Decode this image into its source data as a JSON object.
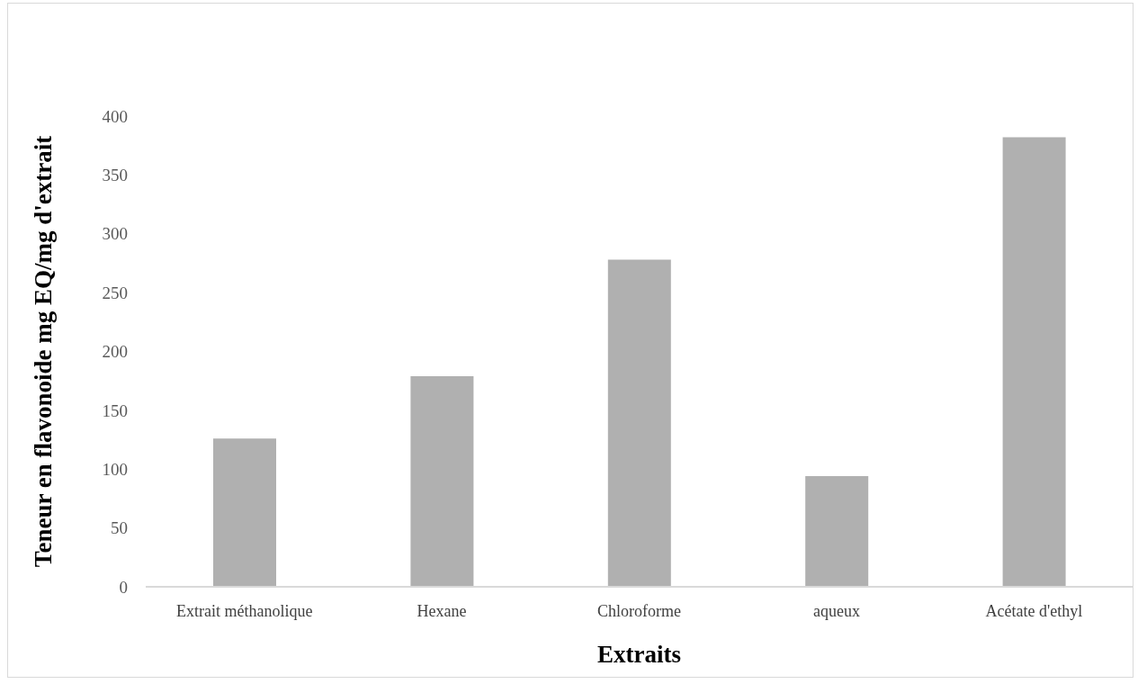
{
  "chart_data": {
    "type": "bar",
    "categories": [
      "Extrait méthanolique",
      "Hexane",
      "Chloroforme",
      "aqueux",
      "Acétate d'ethyl"
    ],
    "values": [
      126,
      179,
      278,
      94,
      382
    ],
    "color": "#b0b0b0",
    "xlabel": "Extraits",
    "ylabel": "Teneur  en flavonoide mg EQ/mg d'extrait",
    "ylim": [
      0,
      400
    ],
    "yticks": [
      0,
      50,
      100,
      150,
      200,
      250,
      300,
      350,
      400
    ]
  }
}
